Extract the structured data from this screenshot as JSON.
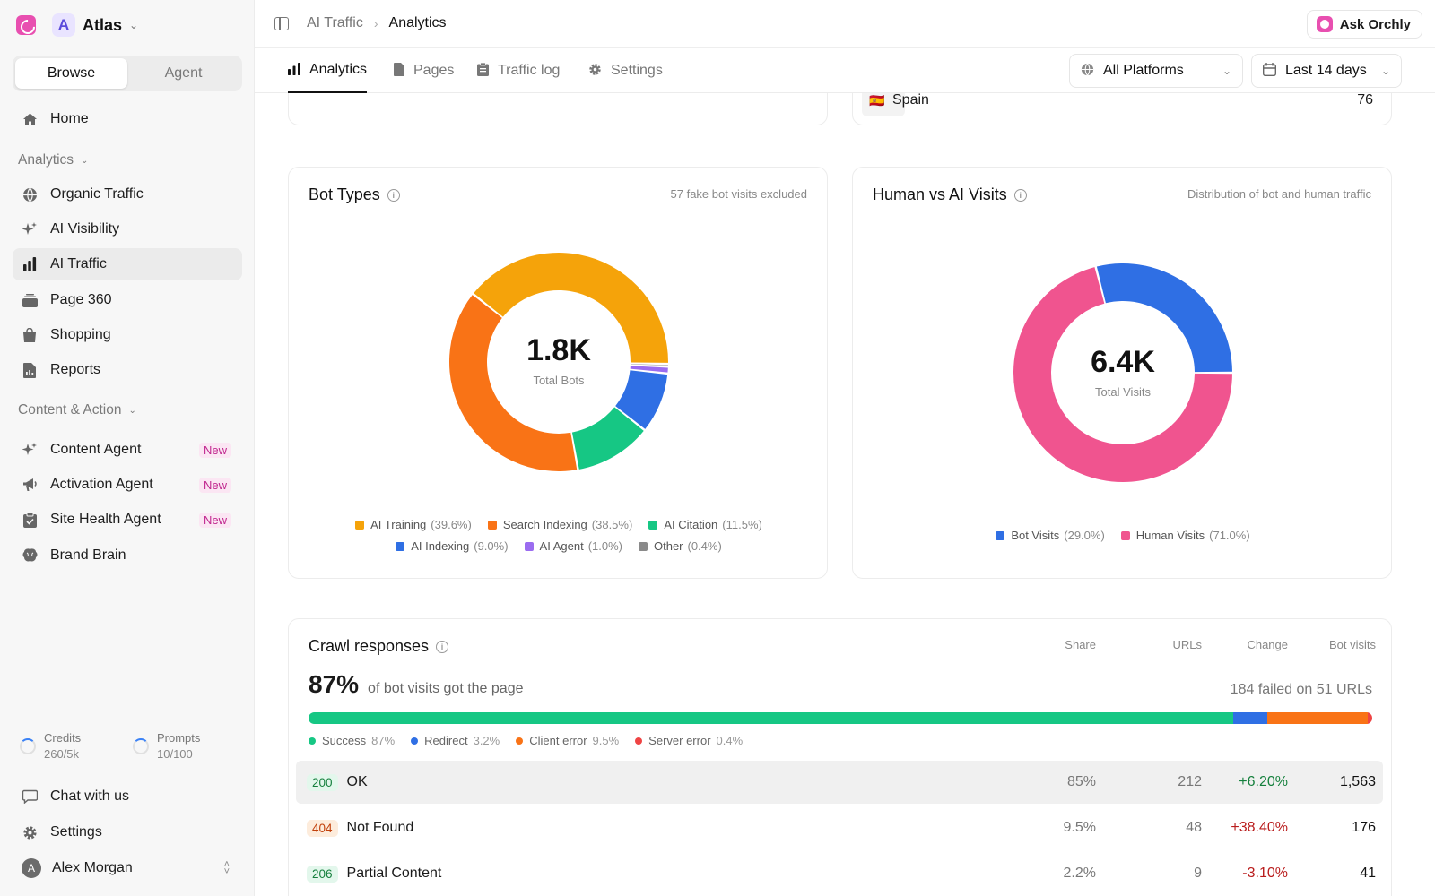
{
  "sidebar": {
    "workspace": {
      "initial": "A",
      "name": "Atlas"
    },
    "segments": [
      {
        "label": "Browse",
        "active": true
      },
      {
        "label": "Agent",
        "active": false
      }
    ],
    "home": "Home",
    "analytics_heading": "Analytics",
    "analytics_items": [
      {
        "label": "Organic Traffic",
        "icon": "globe-icon"
      },
      {
        "label": "AI Visibility",
        "icon": "sparkle-icon"
      },
      {
        "label": "AI Traffic",
        "icon": "bar-chart-icon",
        "active": true
      },
      {
        "label": "Page 360",
        "icon": "layers-icon"
      },
      {
        "label": "Shopping",
        "icon": "shopping-bag-icon"
      },
      {
        "label": "Reports",
        "icon": "report-icon"
      }
    ],
    "content_heading": "Content & Action",
    "content_items": [
      {
        "label": "Content Agent",
        "badge": "New",
        "icon": "sparkle-icon"
      },
      {
        "label": "Activation Agent",
        "badge": "New",
        "icon": "megaphone-icon"
      },
      {
        "label": "Site Health Agent",
        "badge": "New",
        "icon": "clipboard-icon"
      },
      {
        "label": "Brand Brain",
        "icon": "brain-icon"
      }
    ],
    "credits": {
      "label": "Credits",
      "value": "260/5k"
    },
    "prompts": {
      "label": "Prompts",
      "value": "10/100"
    },
    "chat": "Chat with us",
    "settings": "Settings",
    "user": {
      "initial": "A",
      "name": "Alex Morgan"
    }
  },
  "header": {
    "breadcrumb": [
      "AI Traffic",
      "Analytics"
    ],
    "ask_label": "Ask Orchly"
  },
  "tabs": [
    {
      "label": "Analytics",
      "icon": "bar-chart-icon",
      "active": true
    },
    {
      "label": "Pages",
      "icon": "file-icon"
    },
    {
      "label": "Traffic log",
      "icon": "log-icon"
    },
    {
      "label": "Settings",
      "icon": "gear-icon"
    }
  ],
  "filters": {
    "platform": "All Platforms",
    "range": "Last 14 days"
  },
  "country_row": {
    "flag": "🇪🇸",
    "name": "Spain",
    "value": "76"
  },
  "bot_types": {
    "title": "Bot Types",
    "note": "57 fake bot visits excluded",
    "center_value": "1.8K",
    "center_label": "Total Bots"
  },
  "human_vs_ai": {
    "title": "Human vs AI Visits",
    "note": "Distribution of bot and human traffic",
    "center_value": "6.4K",
    "center_label": "Total Visits"
  },
  "chart_data": [
    {
      "type": "pie",
      "title": "Bot Types",
      "categories": [
        "AI Training",
        "Search Indexing",
        "AI Citation",
        "AI Indexing",
        "AI Agent",
        "Other"
      ],
      "values": [
        39.6,
        38.5,
        11.5,
        9.0,
        1.0,
        0.4
      ],
      "labels": [
        "(39.6%)",
        "(38.5%)",
        "(11.5%)",
        "(9.0%)",
        "(1.0%)",
        "(0.4%)"
      ],
      "colors": [
        "#f5a30a",
        "#f97316",
        "#16c784",
        "#2f6fe4",
        "#9b6cf0",
        "#8a8a8a"
      ]
    },
    {
      "type": "pie",
      "title": "Human vs AI Visits",
      "categories": [
        "Bot Visits",
        "Human Visits"
      ],
      "values": [
        29.0,
        71.0
      ],
      "labels": [
        "(29.0%)",
        "(71.0%)"
      ],
      "colors": [
        "#2f6fe4",
        "#f0548f"
      ]
    }
  ],
  "crawl": {
    "title": "Crawl responses",
    "headline_value": "87%",
    "headline_text": "of bot visits got the page",
    "failed_text": "184 failed on 51 URLs",
    "columns": [
      "Share",
      "URLs",
      "Change",
      "Bot visits"
    ],
    "segments": [
      {
        "label": "Success",
        "pct": "87%",
        "value": 87,
        "color": "#16c784"
      },
      {
        "label": "Redirect",
        "pct": "3.2%",
        "value": 3.2,
        "color": "#2f6fe4"
      },
      {
        "label": "Client error",
        "pct": "9.5%",
        "value": 9.5,
        "color": "#f97316"
      },
      {
        "label": "Server error",
        "pct": "0.4%",
        "value": 0.4,
        "color": "#ef4444"
      }
    ],
    "rows": [
      {
        "code": "200",
        "status": "OK",
        "share": "85%",
        "urls": "212",
        "change": "+6.20%",
        "visits": "1,563",
        "code_bg": "#e3f7ec",
        "code_fg": "#15803d",
        "change_color": "#15803d"
      },
      {
        "code": "404",
        "status": "Not Found",
        "share": "9.5%",
        "urls": "48",
        "change": "+38.40%",
        "visits": "176",
        "code_bg": "#fdecdc",
        "code_fg": "#c2410c",
        "change_color": "#b91c1c"
      },
      {
        "code": "206",
        "status": "Partial Content",
        "share": "2.2%",
        "urls": "9",
        "change": "-3.10%",
        "visits": "41",
        "code_bg": "#e3f7ec",
        "code_fg": "#15803d",
        "change_color": "#b91c1c"
      }
    ]
  }
}
